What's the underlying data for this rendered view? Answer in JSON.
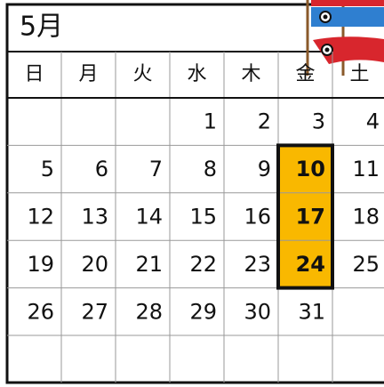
{
  "header": {
    "title": "5月"
  },
  "weekdays": [
    "日",
    "月",
    "火",
    "水",
    "木",
    "金",
    "土"
  ],
  "weeks": [
    [
      null,
      null,
      null,
      1,
      2,
      3,
      4
    ],
    [
      5,
      6,
      7,
      8,
      9,
      10,
      11
    ],
    [
      12,
      13,
      14,
      15,
      16,
      17,
      18
    ],
    [
      19,
      20,
      21,
      22,
      23,
      24,
      25
    ],
    [
      26,
      27,
      28,
      29,
      30,
      31,
      null
    ],
    [
      null,
      null,
      null,
      null,
      null,
      null,
      null
    ]
  ],
  "highlighted_days": [
    10,
    17,
    24
  ],
  "highlight_color": "#f9b800"
}
